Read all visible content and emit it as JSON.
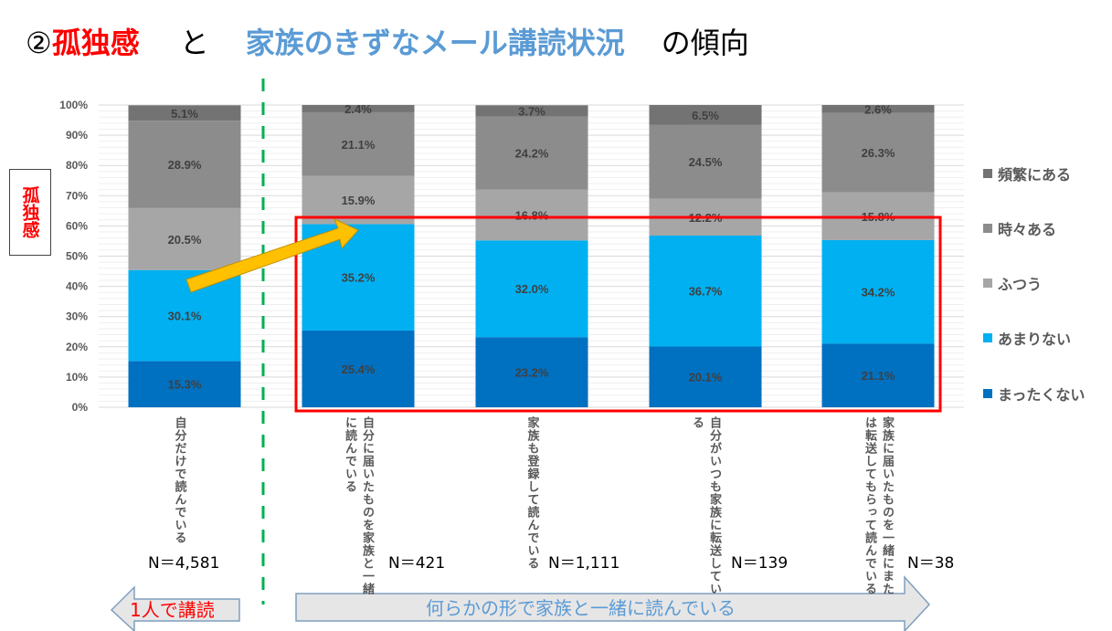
{
  "title": {
    "prefix": "②",
    "red": "孤独感",
    "and": "と",
    "blue": "家族のきずなメール講読状況",
    "tail": "の傾向"
  },
  "side_label": "孤独感",
  "colors": {
    "red": "#ff0000",
    "blue": "#5b9bd5",
    "green": "#00b050",
    "arrow": "#ffc000"
  },
  "chart_data": {
    "type": "bar",
    "stacked": true,
    "ylim": [
      0,
      100
    ],
    "yticks": [
      "0%",
      "10%",
      "20%",
      "30%",
      "40%",
      "50%",
      "60%",
      "70%",
      "80%",
      "90%",
      "100%"
    ],
    "categories": [
      "自分だけで読んでいる",
      "自分に届いたものを家族と一緒\nに読んでいる",
      "家族も登録して読んでいる",
      "自分がいつも家族に転送してい\nる",
      "家族に届いたものを一緒にまた\nは転送してもらって読んでいる"
    ],
    "n_labels": [
      "N＝4,581",
      "N＝421",
      "N＝1,111",
      "N＝139",
      "N＝38"
    ],
    "series": [
      {
        "name": "まったくない",
        "color": "#0070c0",
        "values": [
          15.3,
          25.4,
          23.2,
          20.1,
          21.1
        ]
      },
      {
        "name": "あまりない",
        "color": "#00b0f0",
        "values": [
          30.1,
          35.2,
          32.0,
          36.7,
          34.2
        ]
      },
      {
        "name": "ふつう",
        "color": "#a6a6a6",
        "values": [
          20.5,
          15.9,
          16.8,
          12.2,
          15.8
        ]
      },
      {
        "name": "時々ある",
        "color": "#8c8c8c",
        "values": [
          28.9,
          21.1,
          24.2,
          24.5,
          26.3
        ]
      },
      {
        "name": "頻繁にある",
        "color": "#737373",
        "values": [
          5.1,
          2.4,
          3.7,
          6.5,
          2.6
        ]
      }
    ],
    "legend_position": "right",
    "legend_order": [
      "頻繁にある",
      "時々ある",
      "ふつう",
      "あまりない",
      "まったくない"
    ]
  },
  "arrows": {
    "left": "1人で講読",
    "right": "何らかの形で家族と一緒に読んでいる"
  }
}
